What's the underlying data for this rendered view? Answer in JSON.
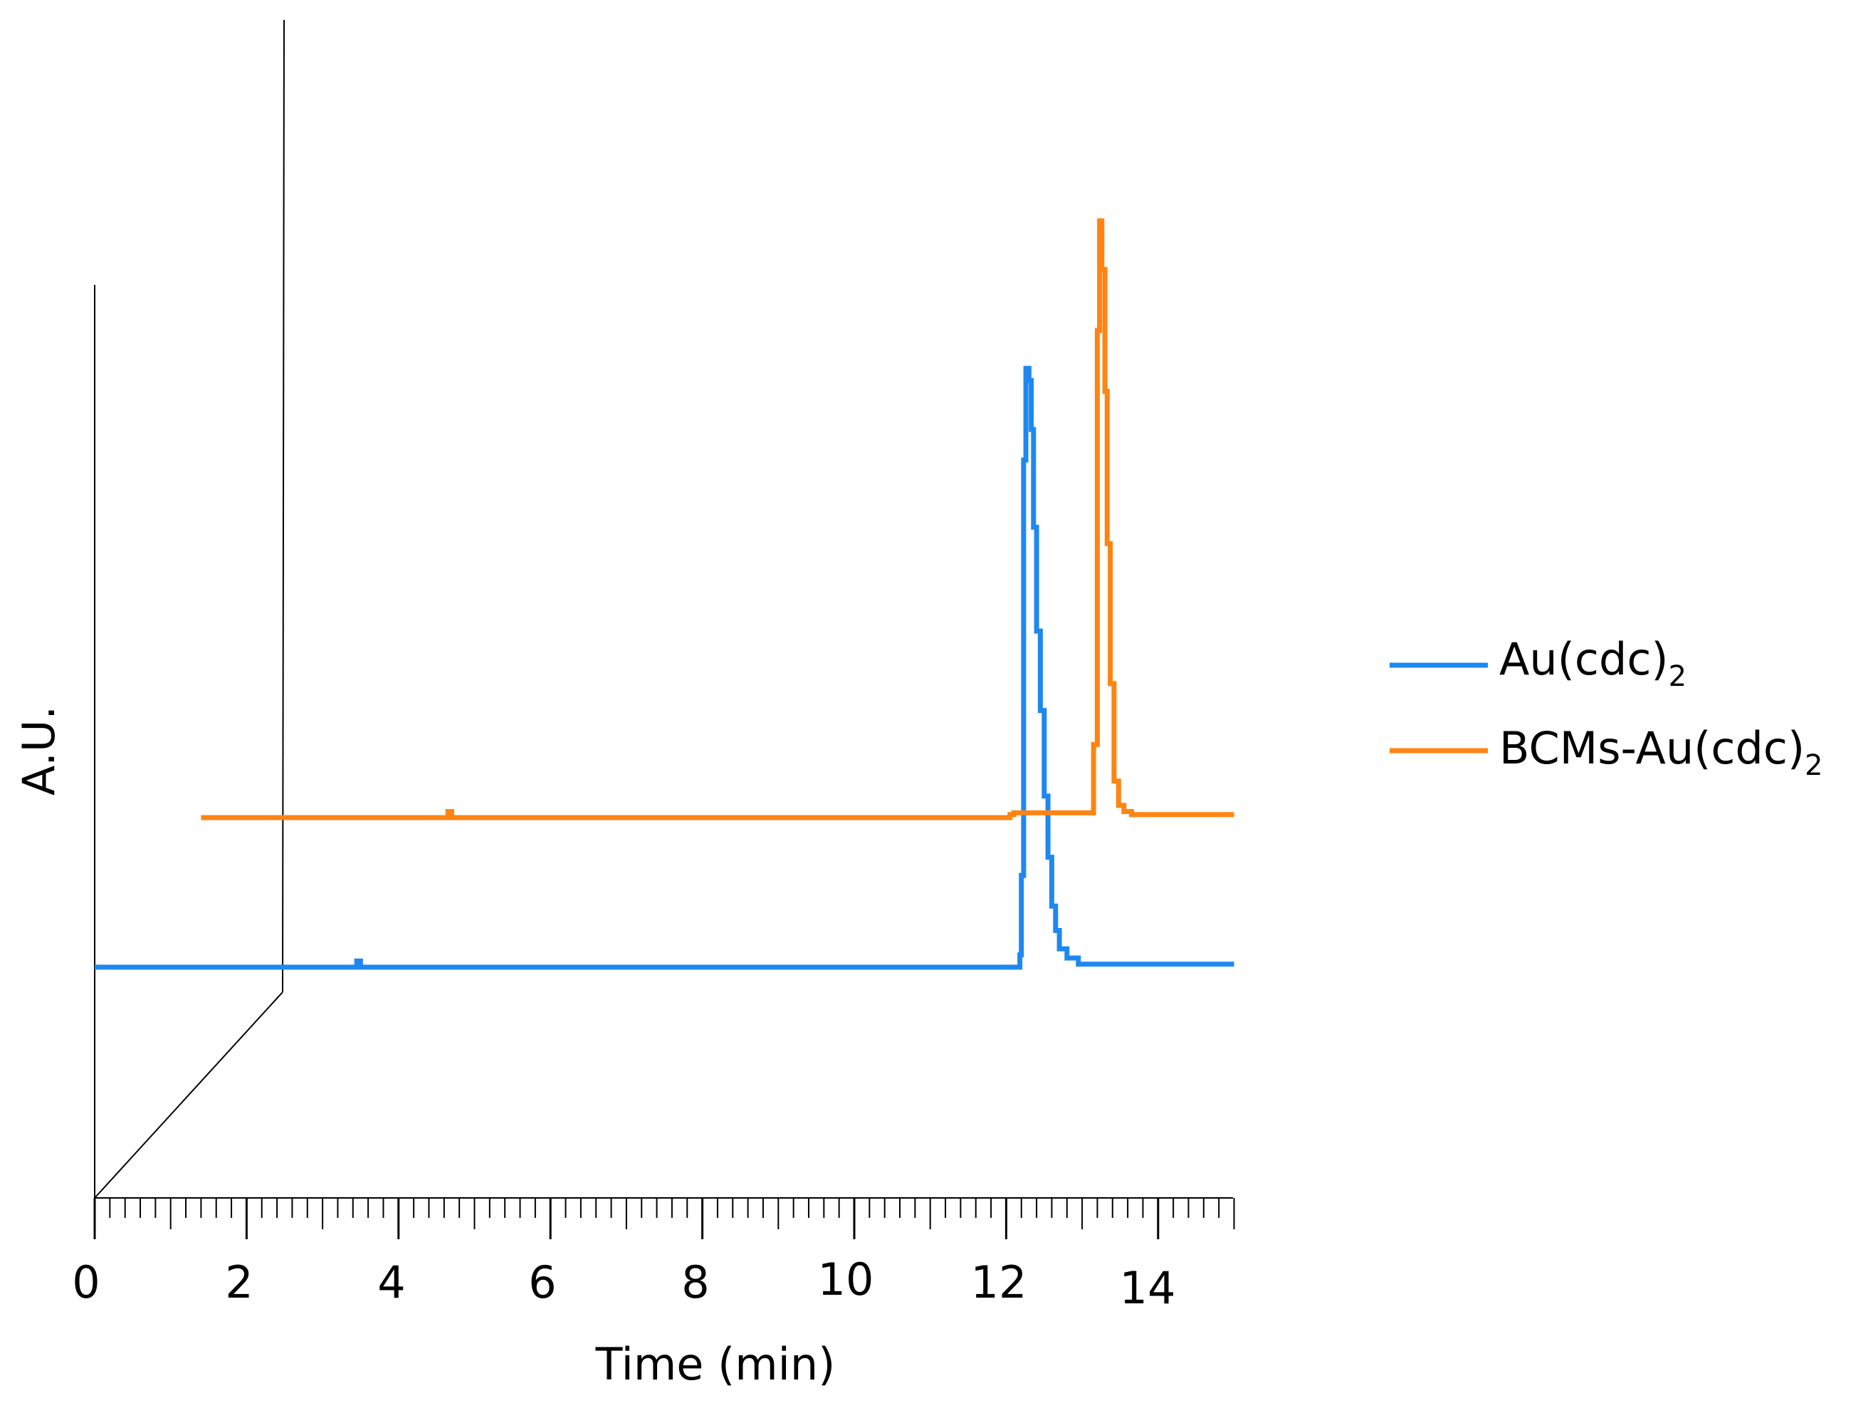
{
  "chart_data": {
    "type": "line",
    "title": "",
    "xlabel": "Time (min)",
    "ylabel": "A.U.",
    "xlim": [
      0,
      15
    ],
    "x_ticks": [
      "0",
      "2",
      "4",
      "6",
      "8",
      "10",
      "12",
      "14"
    ],
    "x_tick_values": [
      0,
      2,
      4,
      6,
      8,
      10,
      12,
      14
    ],
    "minor_tick_step": 0.2,
    "legend_position": "right",
    "grid": false,
    "series": [
      {
        "name": "Au(cdc)",
        "name_subscript": "2",
        "color": "#1e88f0",
        "baseline": 0,
        "x": [
          0,
          3.4,
          3.45,
          3.5,
          12.1,
          12.18,
          12.2,
          12.23,
          12.26,
          12.3,
          12.33,
          12.36,
          12.4,
          12.45,
          12.5,
          12.55,
          12.6,
          12.65,
          12.7,
          12.8,
          12.95,
          13.15,
          15
        ],
        "y": [
          0,
          0,
          0.01,
          0,
          0,
          0.02,
          0.15,
          0.83,
          0.98,
          0.96,
          0.88,
          0.72,
          0.55,
          0.42,
          0.28,
          0.18,
          0.1,
          0.06,
          0.03,
          0.015,
          0.005,
          0.005,
          0.005
        ]
      },
      {
        "name": "BCMs-Au(cdc)",
        "name_subscript": "2",
        "color": "#ff8412",
        "baseline": 1,
        "x": [
          0,
          4.6,
          4.65,
          4.7,
          12.05,
          12.1,
          13.1,
          13.15,
          13.2,
          13.23,
          13.26,
          13.3,
          13.33,
          13.37,
          13.42,
          13.48,
          13.55,
          13.65,
          13.8,
          15
        ],
        "y": [
          0,
          0,
          0.01,
          0,
          0.005,
          0.008,
          0.008,
          0.12,
          0.8,
          0.98,
          0.9,
          0.7,
          0.45,
          0.22,
          0.06,
          0.02,
          0.01,
          0.005,
          0.005,
          0.005
        ]
      }
    ]
  }
}
